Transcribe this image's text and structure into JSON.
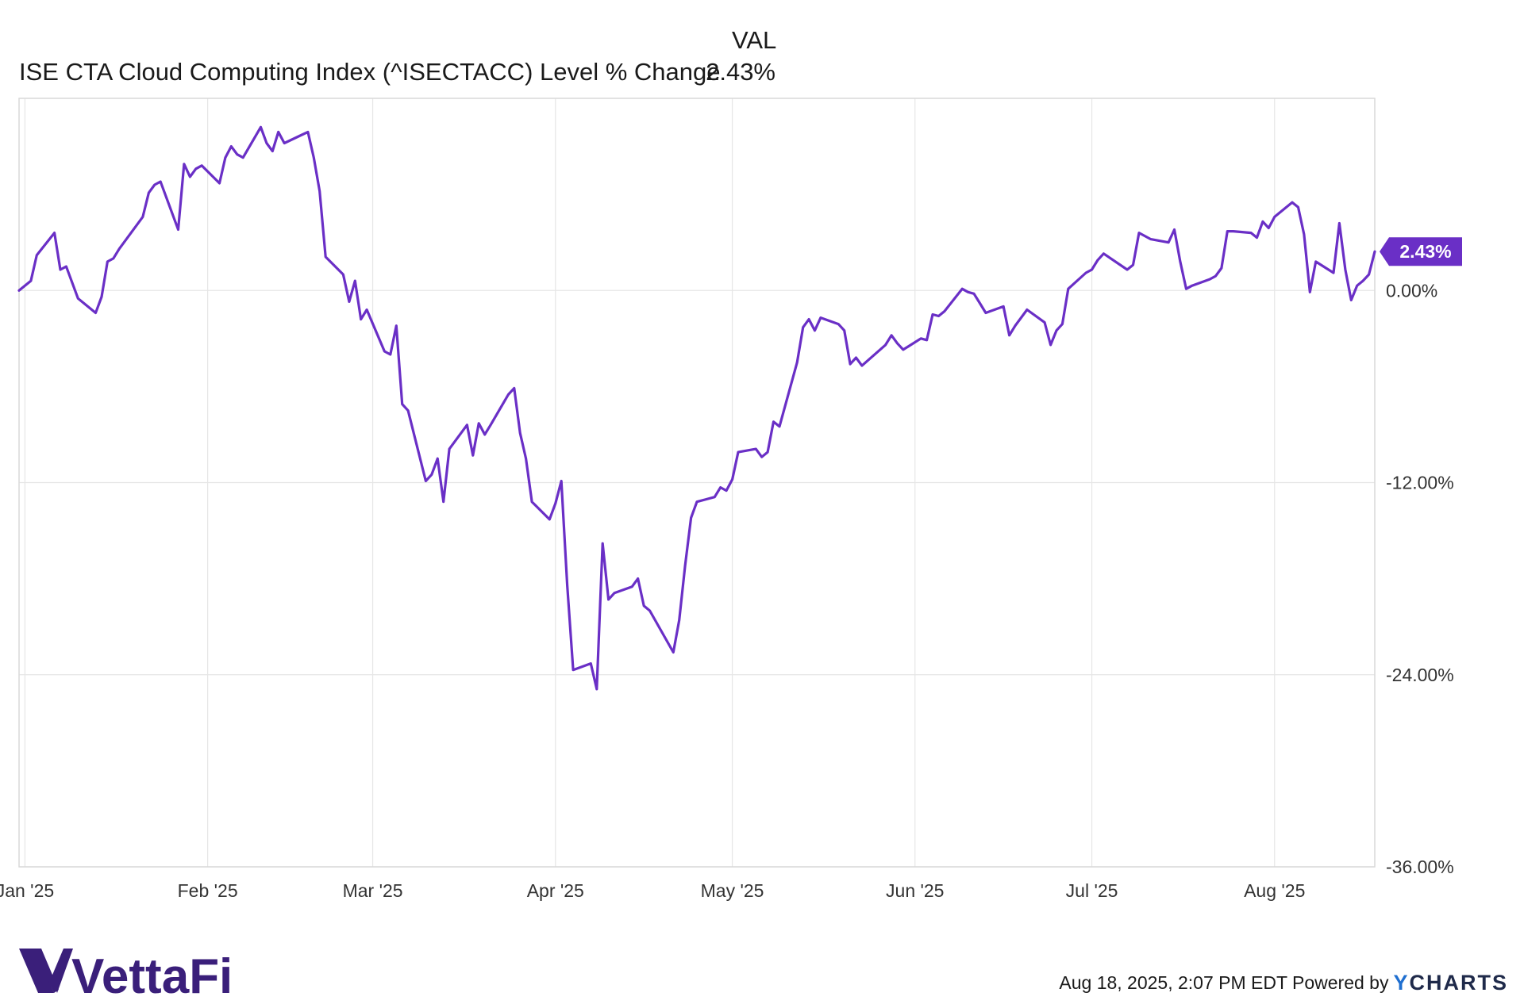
{
  "header": {
    "column_label": "VAL",
    "series_name": "ISE CTA Cloud Computing Index (^ISECTACC) Level % Change",
    "series_value": "2.43%"
  },
  "chart_data": {
    "type": "line",
    "title": "",
    "xlabel": "",
    "ylabel": "",
    "ylim": [
      -36,
      12
    ],
    "y_ticks": [
      0,
      -12,
      -24,
      -36
    ],
    "y_tick_labels": [
      "0.00%",
      "-12.00%",
      "-24.00%",
      "-36.00%"
    ],
    "x_ticks": [
      {
        "label": "Jan '25",
        "date": "2025-01-01"
      },
      {
        "label": "Feb '25",
        "date": "2025-02-01"
      },
      {
        "label": "Mar '25",
        "date": "2025-03-01"
      },
      {
        "label": "Apr '25",
        "date": "2025-04-01"
      },
      {
        "label": "May '25",
        "date": "2025-05-01"
      },
      {
        "label": "Jun '25",
        "date": "2025-06-01"
      },
      {
        "label": "Jul '25",
        "date": "2025-07-01"
      },
      {
        "label": "Aug '25",
        "date": "2025-08-01"
      }
    ],
    "x_range": [
      "2024-12-31",
      "2025-08-18"
    ],
    "grid": true,
    "last_value_label": "2.43%",
    "series": [
      {
        "name": "ISE CTA Cloud Computing Index (^ISECTACC) Level % Change",
        "color": "#6a2fc6",
        "points": [
          [
            "2024-12-31",
            0.0
          ],
          [
            "2025-01-02",
            0.6
          ],
          [
            "2025-01-03",
            2.2
          ],
          [
            "2025-01-06",
            3.6
          ],
          [
            "2025-01-07",
            1.3
          ],
          [
            "2025-01-08",
            1.5
          ],
          [
            "2025-01-10",
            -0.5
          ],
          [
            "2025-01-13",
            -1.4
          ],
          [
            "2025-01-14",
            -0.4
          ],
          [
            "2025-01-15",
            1.8
          ],
          [
            "2025-01-16",
            2.0
          ],
          [
            "2025-01-17",
            2.6
          ],
          [
            "2025-01-21",
            4.6
          ],
          [
            "2025-01-22",
            6.1
          ],
          [
            "2025-01-23",
            6.6
          ],
          [
            "2025-01-24",
            6.8
          ],
          [
            "2025-01-27",
            3.8
          ],
          [
            "2025-01-28",
            7.9
          ],
          [
            "2025-01-29",
            7.1
          ],
          [
            "2025-01-30",
            7.6
          ],
          [
            "2025-01-31",
            7.8
          ],
          [
            "2025-02-03",
            6.7
          ],
          [
            "2025-02-04",
            8.3
          ],
          [
            "2025-02-05",
            9.0
          ],
          [
            "2025-02-06",
            8.5
          ],
          [
            "2025-02-07",
            8.3
          ],
          [
            "2025-02-10",
            10.2
          ],
          [
            "2025-02-11",
            9.2
          ],
          [
            "2025-02-12",
            8.7
          ],
          [
            "2025-02-13",
            9.9
          ],
          [
            "2025-02-14",
            9.2
          ],
          [
            "2025-02-18",
            9.9
          ],
          [
            "2025-02-19",
            8.3
          ],
          [
            "2025-02-20",
            6.2
          ],
          [
            "2025-02-21",
            2.1
          ],
          [
            "2025-02-24",
            1.0
          ],
          [
            "2025-02-25",
            -0.7
          ],
          [
            "2025-02-26",
            0.6
          ],
          [
            "2025-02-27",
            -1.8
          ],
          [
            "2025-02-28",
            -1.2
          ],
          [
            "2025-03-03",
            -3.8
          ],
          [
            "2025-03-04",
            -4.0
          ],
          [
            "2025-03-05",
            -2.2
          ],
          [
            "2025-03-06",
            -7.1
          ],
          [
            "2025-03-07",
            -7.5
          ],
          [
            "2025-03-10",
            -11.9
          ],
          [
            "2025-03-11",
            -11.5
          ],
          [
            "2025-03-12",
            -10.5
          ],
          [
            "2025-03-13",
            -13.2
          ],
          [
            "2025-03-14",
            -9.9
          ],
          [
            "2025-03-17",
            -8.4
          ],
          [
            "2025-03-18",
            -10.3
          ],
          [
            "2025-03-19",
            -8.3
          ],
          [
            "2025-03-20",
            -9.0
          ],
          [
            "2025-03-21",
            -8.4
          ],
          [
            "2025-03-24",
            -6.5
          ],
          [
            "2025-03-25",
            -6.1
          ],
          [
            "2025-03-26",
            -8.9
          ],
          [
            "2025-03-27",
            -10.5
          ],
          [
            "2025-03-28",
            -13.2
          ],
          [
            "2025-03-31",
            -14.3
          ],
          [
            "2025-04-01",
            -13.3
          ],
          [
            "2025-04-02",
            -11.9
          ],
          [
            "2025-04-03",
            -18.4
          ],
          [
            "2025-04-04",
            -23.7
          ],
          [
            "2025-04-07",
            -23.3
          ],
          [
            "2025-04-08",
            -24.9
          ],
          [
            "2025-04-09",
            -15.8
          ],
          [
            "2025-04-10",
            -19.3
          ],
          [
            "2025-04-11",
            -18.9
          ],
          [
            "2025-04-14",
            -18.5
          ],
          [
            "2025-04-15",
            -18.0
          ],
          [
            "2025-04-16",
            -19.7
          ],
          [
            "2025-04-17",
            -20.0
          ],
          [
            "2025-04-21",
            -22.6
          ],
          [
            "2025-04-22",
            -20.6
          ],
          [
            "2025-04-23",
            -17.2
          ],
          [
            "2025-04-24",
            -14.2
          ],
          [
            "2025-04-25",
            -13.2
          ],
          [
            "2025-04-28",
            -12.9
          ],
          [
            "2025-04-29",
            -12.3
          ],
          [
            "2025-04-30",
            -12.5
          ],
          [
            "2025-05-01",
            -11.8
          ],
          [
            "2025-05-02",
            -10.1
          ],
          [
            "2025-05-05",
            -9.9
          ],
          [
            "2025-05-06",
            -10.4
          ],
          [
            "2025-05-07",
            -10.1
          ],
          [
            "2025-05-08",
            -8.2
          ],
          [
            "2025-05-09",
            -8.5
          ],
          [
            "2025-05-12",
            -4.5
          ],
          [
            "2025-05-13",
            -2.3
          ],
          [
            "2025-05-14",
            -1.8
          ],
          [
            "2025-05-15",
            -2.5
          ],
          [
            "2025-05-16",
            -1.7
          ],
          [
            "2025-05-19",
            -2.1
          ],
          [
            "2025-05-20",
            -2.5
          ],
          [
            "2025-05-21",
            -4.6
          ],
          [
            "2025-05-22",
            -4.2
          ],
          [
            "2025-05-23",
            -4.7
          ],
          [
            "2025-05-27",
            -3.4
          ],
          [
            "2025-05-28",
            -2.8
          ],
          [
            "2025-05-29",
            -3.3
          ],
          [
            "2025-05-30",
            -3.7
          ],
          [
            "2025-06-02",
            -3.0
          ],
          [
            "2025-06-03",
            -3.1
          ],
          [
            "2025-06-04",
            -1.5
          ],
          [
            "2025-06-05",
            -1.6
          ],
          [
            "2025-06-06",
            -1.3
          ],
          [
            "2025-06-09",
            0.1
          ],
          [
            "2025-06-10",
            -0.1
          ],
          [
            "2025-06-11",
            -0.2
          ],
          [
            "2025-06-12",
            -0.8
          ],
          [
            "2025-06-13",
            -1.4
          ],
          [
            "2025-06-16",
            -1.0
          ],
          [
            "2025-06-17",
            -2.8
          ],
          [
            "2025-06-18",
            -2.2
          ],
          [
            "2025-06-20",
            -1.2
          ],
          [
            "2025-06-23",
            -2.0
          ],
          [
            "2025-06-24",
            -3.4
          ],
          [
            "2025-06-25",
            -2.5
          ],
          [
            "2025-06-26",
            -2.1
          ],
          [
            "2025-06-27",
            0.1
          ],
          [
            "2025-06-30",
            1.1
          ],
          [
            "2025-07-01",
            1.3
          ],
          [
            "2025-07-02",
            1.9
          ],
          [
            "2025-07-03",
            2.3
          ],
          [
            "2025-07-07",
            1.3
          ],
          [
            "2025-07-08",
            1.6
          ],
          [
            "2025-07-09",
            3.6
          ],
          [
            "2025-07-10",
            3.4
          ],
          [
            "2025-07-11",
            3.2
          ],
          [
            "2025-07-14",
            3.0
          ],
          [
            "2025-07-15",
            3.8
          ],
          [
            "2025-07-16",
            1.8
          ],
          [
            "2025-07-17",
            0.1
          ],
          [
            "2025-07-18",
            0.3
          ],
          [
            "2025-07-21",
            0.7
          ],
          [
            "2025-07-22",
            0.9
          ],
          [
            "2025-07-23",
            1.4
          ],
          [
            "2025-07-24",
            3.7
          ],
          [
            "2025-07-25",
            3.7
          ],
          [
            "2025-07-28",
            3.6
          ],
          [
            "2025-07-29",
            3.3
          ],
          [
            "2025-07-30",
            4.3
          ],
          [
            "2025-07-31",
            3.9
          ],
          [
            "2025-08-01",
            4.6
          ],
          [
            "2025-08-04",
            5.5
          ],
          [
            "2025-08-05",
            5.2
          ],
          [
            "2025-08-06",
            3.5
          ],
          [
            "2025-08-07",
            -0.1
          ],
          [
            "2025-08-08",
            1.8
          ],
          [
            "2025-08-11",
            1.1
          ],
          [
            "2025-08-12",
            4.2
          ],
          [
            "2025-08-13",
            1.3
          ],
          [
            "2025-08-14",
            -0.6
          ],
          [
            "2025-08-15",
            0.3
          ],
          [
            "2025-08-16",
            0.6
          ],
          [
            "2025-08-17",
            1.0
          ],
          [
            "2025-08-18",
            2.43
          ]
        ]
      }
    ]
  },
  "footer": {
    "brand": "VettaFi",
    "timestamp": "Aug 18, 2025, 2:07 PM EDT Powered by",
    "ycharts_y": "Y",
    "ycharts_rest": "CHARTS"
  },
  "colors": {
    "series": "#6a2fc6",
    "grid": "#e3e3e3",
    "brand": "#3a1f7a"
  }
}
